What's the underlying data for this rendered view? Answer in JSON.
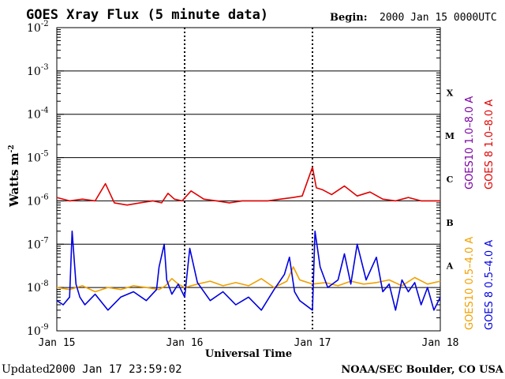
{
  "header": {
    "title": "GOES Xray Flux (5 minute data)",
    "begin_label": "Begin:",
    "begin_value": "2000 Jan 15 0000UTC"
  },
  "footer": {
    "updated_label": "Updated",
    "updated_value": "2000 Jan 17 23:59:02",
    "source": "NOAA/SEC Boulder, CO USA"
  },
  "legend": {
    "goes10_long": "GOES10 1.0–8.0 A",
    "goes8_long": "GOES 8 1.0–8.0 A",
    "goes10_short": "GOES10 0.5–4.0 A",
    "goes8_short": "GOES 8 0.5–4.0 A"
  },
  "colors": {
    "goes10_long": "#7a00a0",
    "goes8_long": "#e00000",
    "goes10_short": "#f0a000",
    "goes8_short": "#0000e0"
  },
  "chart_data": {
    "type": "line",
    "title": "GOES Xray Flux (5 minute data)",
    "xlabel": "Universal Time",
    "ylabel_base": "Watts m",
    "ylabel_exp": "-2",
    "x_ticks": [
      "Jan 15",
      "Jan 16",
      "Jan 17",
      "Jan 18"
    ],
    "x_range_days": [
      0,
      3
    ],
    "y_scale": "log",
    "ylim": [
      1e-09,
      0.01
    ],
    "y_tick_exponents": [
      -9,
      -8,
      -7,
      -6,
      -5,
      -4,
      -3,
      -2
    ],
    "flare_classes": [
      {
        "label": "A",
        "decade": -8
      },
      {
        "label": "B",
        "decade": -7
      },
      {
        "label": "C",
        "decade": -6
      },
      {
        "label": "M",
        "decade": -5
      },
      {
        "label": "X",
        "decade": -4
      }
    ],
    "grid": "horizontal at each decade",
    "series": [
      {
        "name": "GOES 8 1.0–8.0 A",
        "x": [
          0.0,
          0.1,
          0.2,
          0.3,
          0.38,
          0.45,
          0.55,
          0.65,
          0.75,
          0.82,
          0.87,
          0.92,
          0.98,
          1.05,
          1.15,
          1.25,
          1.35,
          1.45,
          1.55,
          1.65,
          1.75,
          1.85,
          1.92,
          2.0,
          2.03,
          2.08,
          2.15,
          2.25,
          2.35,
          2.45,
          2.55,
          2.65,
          2.75,
          2.85,
          3.0
        ],
        "y": [
          1.2e-06,
          1e-06,
          1.1e-06,
          1e-06,
          2.5e-06,
          9e-07,
          8e-07,
          9e-07,
          1e-06,
          9e-07,
          1.5e-06,
          1.1e-06,
          1e-06,
          1.7e-06,
          1.1e-06,
          1e-06,
          9e-07,
          1e-06,
          1e-06,
          1e-06,
          1.1e-06,
          1.2e-06,
          1.3e-06,
          6e-06,
          2e-06,
          1.8e-06,
          1.4e-06,
          2.2e-06,
          1.3e-06,
          1.6e-06,
          1.1e-06,
          1e-06,
          1.2e-06,
          1e-06,
          1e-06
        ]
      },
      {
        "name": "GOES10 0.5–4.0 A",
        "x": [
          0.0,
          0.1,
          0.2,
          0.3,
          0.4,
          0.5,
          0.6,
          0.7,
          0.8,
          0.85,
          0.9,
          0.95,
          1.0,
          1.1,
          1.2,
          1.3,
          1.4,
          1.5,
          1.6,
          1.7,
          1.8,
          1.85,
          1.9,
          2.0,
          2.1,
          2.2,
          2.3,
          2.4,
          2.5,
          2.6,
          2.7,
          2.8,
          2.9,
          3.0
        ],
        "y": [
          1e-08,
          9e-09,
          1.1e-08,
          8e-09,
          1e-08,
          9e-09,
          1.1e-08,
          1e-08,
          9e-09,
          1.1e-08,
          1.6e-08,
          1.2e-08,
          1e-08,
          1.2e-08,
          1.4e-08,
          1.1e-08,
          1.3e-08,
          1.1e-08,
          1.6e-08,
          1e-08,
          1.4e-08,
          3e-08,
          1.5e-08,
          1.2e-08,
          1.3e-08,
          1.1e-08,
          1.4e-08,
          1.2e-08,
          1.3e-08,
          1.5e-08,
          1.1e-08,
          1.7e-08,
          1.2e-08,
          1.4e-08
        ]
      },
      {
        "name": "GOES 8 0.5–4.0 A",
        "x": [
          0.0,
          0.05,
          0.1,
          0.12,
          0.15,
          0.18,
          0.22,
          0.3,
          0.4,
          0.5,
          0.6,
          0.7,
          0.78,
          0.8,
          0.84,
          0.86,
          0.9,
          0.95,
          1.0,
          1.04,
          1.1,
          1.2,
          1.3,
          1.4,
          1.5,
          1.6,
          1.7,
          1.78,
          1.82,
          1.86,
          1.9,
          2.0,
          2.02,
          2.06,
          2.12,
          2.2,
          2.25,
          2.3,
          2.35,
          2.42,
          2.5,
          2.55,
          2.6,
          2.65,
          2.7,
          2.75,
          2.8,
          2.85,
          2.9,
          2.95,
          3.0
        ],
        "y": [
          5e-09,
          4e-09,
          6e-09,
          2e-07,
          1.2e-08,
          6e-09,
          4e-09,
          7e-09,
          3e-09,
          6e-09,
          8e-09,
          5e-09,
          9e-09,
          3e-08,
          1e-07,
          1.5e-08,
          7e-09,
          1.2e-08,
          6e-09,
          8e-08,
          1.3e-08,
          5e-09,
          8e-09,
          4e-09,
          6e-09,
          3e-09,
          9e-09,
          2e-08,
          5e-08,
          8e-09,
          5e-09,
          3e-09,
          2e-07,
          3e-08,
          1e-08,
          1.5e-08,
          6e-08,
          1.2e-08,
          1e-07,
          1.5e-08,
          5e-08,
          8e-09,
          1.2e-08,
          3e-09,
          1.5e-08,
          8e-09,
          1.3e-08,
          4e-09,
          1e-08,
          3e-09,
          6e-09
        ]
      }
    ]
  }
}
